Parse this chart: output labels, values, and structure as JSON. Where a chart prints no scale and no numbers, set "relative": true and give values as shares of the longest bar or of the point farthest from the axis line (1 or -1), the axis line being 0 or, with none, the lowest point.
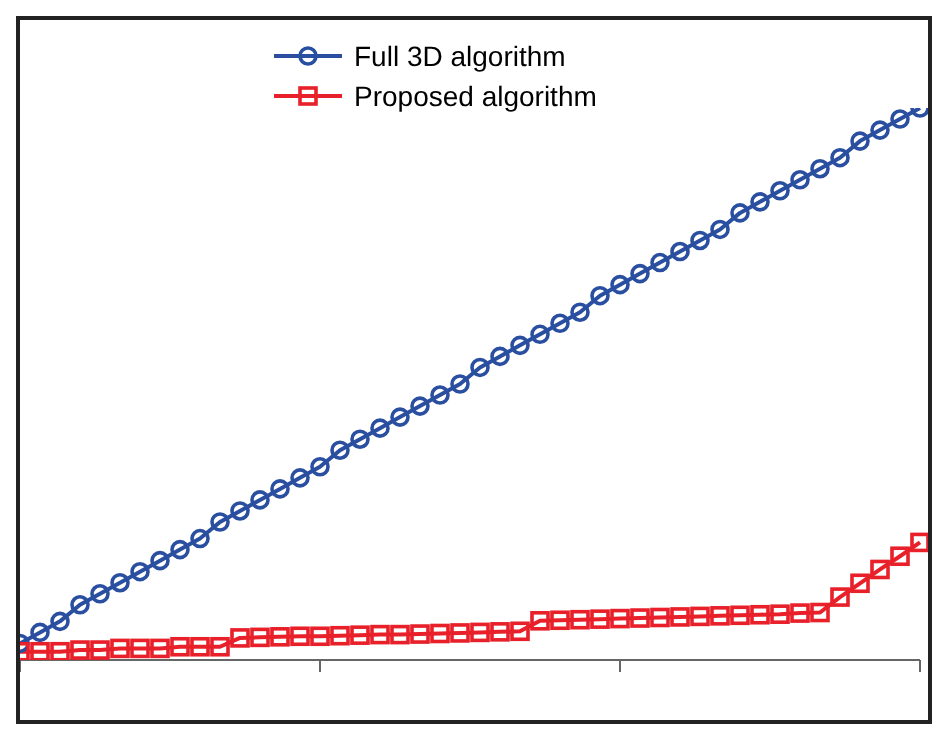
{
  "chart_data": {
    "type": "line",
    "relative": true,
    "legend": "top",
    "categories": [
      null,
      null,
      null,
      null,
      null,
      null,
      null,
      null,
      null,
      null,
      null,
      null,
      null,
      null,
      null,
      null,
      null,
      null,
      null,
      null,
      null,
      null,
      null,
      null,
      null,
      null,
      null,
      null,
      null,
      null,
      null,
      null,
      null,
      null,
      null,
      null,
      null,
      null,
      null,
      null,
      null,
      null,
      null,
      null,
      null,
      null
    ],
    "series": [
      {
        "name": "Full 3D algorithm",
        "color": "#2a4fa0",
        "marker": "circle",
        "values": [
          0.03,
          0.05,
          0.07,
          0.1,
          0.12,
          0.14,
          0.16,
          0.18,
          0.2,
          0.22,
          0.25,
          0.27,
          0.29,
          0.31,
          0.33,
          0.35,
          0.38,
          0.4,
          0.42,
          0.44,
          0.46,
          0.48,
          0.5,
          0.53,
          0.55,
          0.57,
          0.59,
          0.61,
          0.63,
          0.66,
          0.68,
          0.7,
          0.72,
          0.74,
          0.76,
          0.78,
          0.81,
          0.83,
          0.85,
          0.87,
          0.89,
          0.91,
          0.94,
          0.96,
          0.98,
          1.0
        ]
      },
      {
        "name": "Proposed algorithm",
        "color": "#e8202a",
        "marker": "square",
        "values": [
          0.015,
          0.015,
          0.015,
          0.018,
          0.018,
          0.021,
          0.021,
          0.021,
          0.024,
          0.024,
          0.024,
          0.04,
          0.041,
          0.042,
          0.043,
          0.043,
          0.044,
          0.045,
          0.046,
          0.046,
          0.047,
          0.048,
          0.049,
          0.05,
          0.051,
          0.052,
          0.071,
          0.072,
          0.073,
          0.074,
          0.075,
          0.076,
          0.077,
          0.078,
          0.079,
          0.08,
          0.081,
          0.082,
          0.083,
          0.085,
          0.086,
          0.114,
          0.139,
          0.164,
          0.188,
          0.213
        ]
      }
    ]
  }
}
